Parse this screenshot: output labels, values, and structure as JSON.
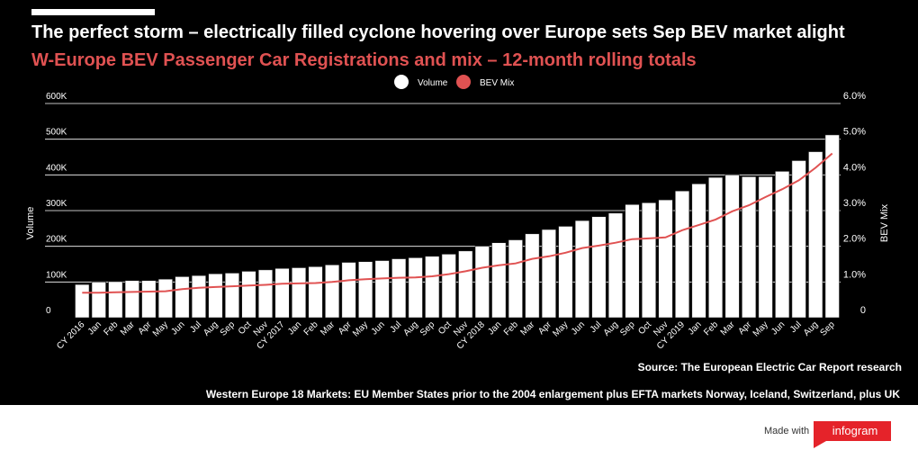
{
  "header": {
    "title": "The perfect storm – electrically filled cyclone hovering over Europe sets Sep BEV market alight",
    "subtitle": "W-Europe BEV Passenger Car Registrations and mix – 12-month rolling totals"
  },
  "footer": {
    "source": "Source: The European Electric Car Report research",
    "footnote": "Western Europe 18 Markets: EU Member States prior to the 2004 enlargement plus EFTA markets Norway, Iceland, Switzerland, plus UK",
    "made_with": "Made with",
    "brand": "infogram"
  },
  "chart_data": {
    "type": "bar",
    "categories": [
      "CY 2016",
      "Jan",
      "Feb",
      "Mar",
      "Apr",
      "May",
      "Jun",
      "Jul",
      "Aug",
      "Sep",
      "Oct",
      "Nov",
      "CY 2017",
      "Jan",
      "Feb",
      "Mar",
      "Apr",
      "May",
      "Jun",
      "Jul",
      "Aug",
      "Sep",
      "Oct",
      "Nov",
      "CY 2018",
      "Jan",
      "Feb",
      "Mar",
      "Apr",
      "May",
      "Jun",
      "Jul",
      "Aug",
      "Sep",
      "Oct",
      "Nov",
      "CY 2019",
      "Jan",
      "Feb",
      "Mar",
      "Apr",
      "May",
      "Jun",
      "Jul",
      "Aug",
      "Sep"
    ],
    "series": [
      {
        "name": "Volume",
        "type": "bar",
        "axis": "left",
        "color": "#ffffff",
        "values": [
          93000,
          100000,
          101000,
          104000,
          104000,
          108000,
          115000,
          118000,
          123000,
          125000,
          130000,
          134000,
          138000,
          140000,
          143000,
          148000,
          155000,
          157000,
          160000,
          165000,
          168000,
          172000,
          178000,
          187000,
          200000,
          210000,
          218000,
          235000,
          247000,
          256000,
          272000,
          283000,
          293000,
          317000,
          322000,
          330000,
          355000,
          375000,
          393000,
          400000,
          395000,
          395000,
          410000,
          440000,
          465000,
          512000
        ]
      },
      {
        "name": "BEV Mix",
        "type": "line",
        "axis": "right",
        "color": "#e05252",
        "values": [
          0.7,
          0.7,
          0.71,
          0.72,
          0.73,
          0.74,
          0.8,
          0.84,
          0.86,
          0.88,
          0.9,
          0.92,
          0.95,
          0.96,
          0.97,
          1.0,
          1.05,
          1.08,
          1.1,
          1.12,
          1.13,
          1.16,
          1.22,
          1.3,
          1.4,
          1.47,
          1.52,
          1.65,
          1.72,
          1.82,
          1.95,
          2.02,
          2.1,
          2.2,
          2.22,
          2.25,
          2.45,
          2.6,
          2.75,
          2.98,
          3.15,
          3.38,
          3.6,
          3.85,
          4.2,
          4.6
        ]
      }
    ],
    "y_left": {
      "label": "Volume",
      "ylim": [
        0,
        600000
      ],
      "ticks": [
        "0",
        "100K",
        "200K",
        "300K",
        "400K",
        "500K",
        "600K"
      ]
    },
    "y_right": {
      "label": "BEV Mix",
      "ylim": [
        0,
        6
      ],
      "ticks": [
        "0",
        "1.0%",
        "2.0%",
        "3.0%",
        "4.0%",
        "5.0%",
        "6.0%"
      ]
    },
    "grid": true,
    "legend_position": "top-center"
  }
}
